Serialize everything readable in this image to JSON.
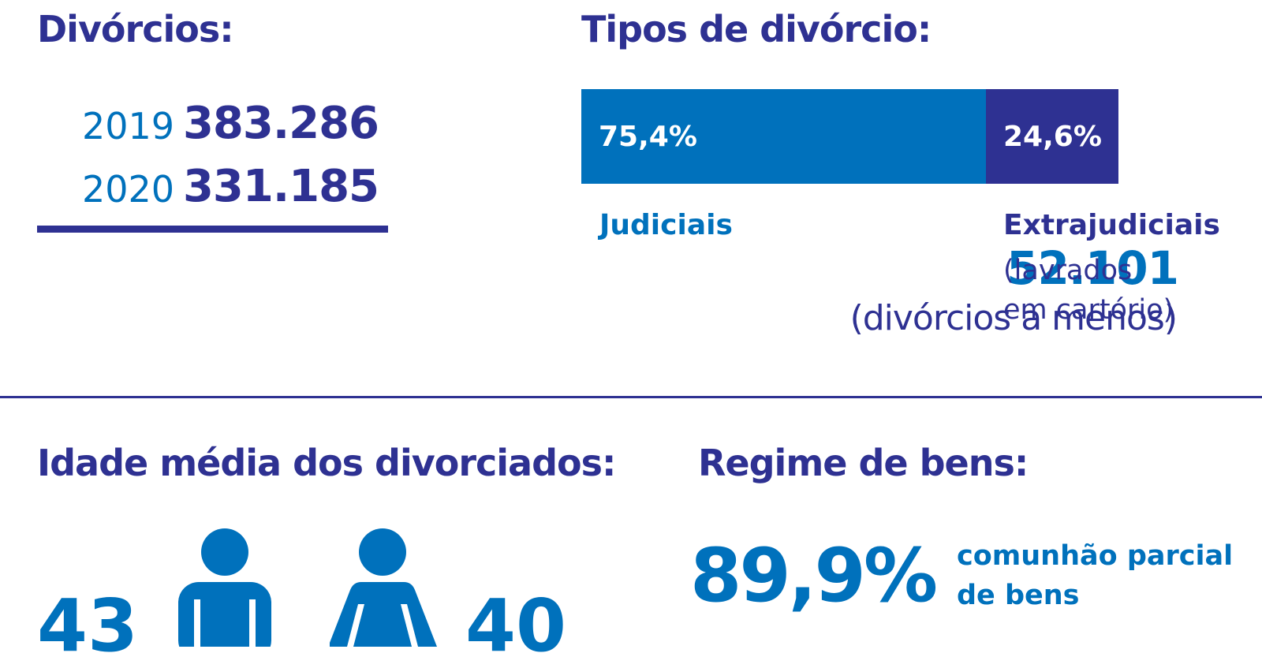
{
  "divorcios": {
    "title": "Divórcios:",
    "rows": [
      {
        "year": "2019",
        "value": "383.286"
      },
      {
        "year": "2020",
        "value": "331.185"
      }
    ],
    "difference": "52.101",
    "difference_note": "(divórcios a menos)"
  },
  "tipos": {
    "title": "Tipos de divórcio:",
    "categories": [
      {
        "label": "Judiciais",
        "pct_label": "75,4%",
        "sublabel": [
          "",
          ""
        ]
      },
      {
        "label": "Extrajudiciais",
        "pct_label": "24,6%",
        "sublabel": [
          "(lavrados",
          "em cartório)"
        ]
      }
    ]
  },
  "idade": {
    "title": "Idade média dos divorciados:",
    "man_age": "43",
    "woman_age": "40",
    "icons": [
      "man-icon",
      "woman-icon"
    ]
  },
  "regime": {
    "title": "Regime de bens:",
    "pct": "89,9%",
    "desc_lines": [
      "comunhão parcial",
      "de bens"
    ]
  },
  "colors": {
    "blue": "#0071bc",
    "navy": "#2e3192"
  },
  "chart_data": {
    "type": "bar",
    "orientation": "horizontal-stacked",
    "categories": [
      "Judiciais",
      "Extrajudiciais"
    ],
    "values": [
      75.4,
      24.6
    ],
    "colors": [
      "#0071bc",
      "#2e3192"
    ],
    "title": "Tipos de divórcio:"
  }
}
